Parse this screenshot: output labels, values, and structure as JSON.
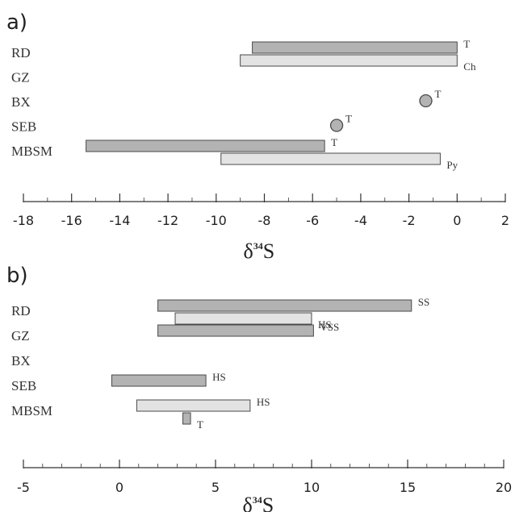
{
  "chart_data": [
    {
      "type": "bar",
      "panel_label": "a)",
      "xlabel": "δ34S",
      "xlabel_main": "δ",
      "xlabel_sup": "34",
      "xlabel_tail": "S",
      "xlim": [
        -18,
        2
      ],
      "xticks": [
        -18,
        -16,
        -14,
        -12,
        -10,
        -8,
        -6,
        -4,
        -2,
        0,
        2
      ],
      "xtick_labels": [
        "-18",
        "-16",
        "-14",
        "-12",
        "-10",
        "-8",
        "-6",
        "-4",
        "-2",
        "0",
        "2"
      ],
      "minor_step": 1,
      "categories": [
        "RD",
        "GZ",
        "BX",
        "SEB",
        "MBSM"
      ],
      "ranges": [
        {
          "category": "RD",
          "label": "T",
          "min": -8.5,
          "max": 0.0,
          "shade": "dark",
          "slot": 0
        },
        {
          "category": "RD",
          "label": "Ch",
          "min": -9.0,
          "max": 0.0,
          "shade": "light",
          "slot": 1
        },
        {
          "category": "MBSM",
          "label": "T",
          "min": -15.4,
          "max": -5.5,
          "shade": "dark",
          "slot": 0
        },
        {
          "category": "MBSM",
          "label": "Py",
          "min": -9.8,
          "max": -0.7,
          "shade": "light",
          "slot": 1
        }
      ],
      "points": [
        {
          "category": "BX",
          "label": "T",
          "value": -1.3,
          "shade": "dark"
        },
        {
          "category": "SEB",
          "label": "T",
          "value": -5.0,
          "shade": "dark"
        }
      ]
    },
    {
      "type": "bar",
      "panel_label": "b)",
      "xlabel": "δ34S",
      "xlabel_main": "δ",
      "xlabel_sup": "34",
      "xlabel_tail": "S",
      "xlim": [
        -5,
        20
      ],
      "xticks": [
        -5,
        0,
        5,
        10,
        15,
        20
      ],
      "xtick_labels": [
        "-5",
        "0",
        "5",
        "10",
        "15",
        "20"
      ],
      "minor_step": 1,
      "categories": [
        "RD",
        "GZ",
        "BX",
        "SEB",
        "MBSM"
      ],
      "ranges": [
        {
          "category": "RD",
          "label": "SS",
          "min": 2.0,
          "max": 15.2,
          "shade": "dark",
          "slot": 0
        },
        {
          "category": "RD",
          "label": "HS",
          "min": 2.9,
          "max": 10.0,
          "shade": "light",
          "slot": 1
        },
        {
          "category": "GZ",
          "label": "VSS",
          "min": 2.0,
          "max": 10.1,
          "shade": "dark",
          "slot": 0
        },
        {
          "category": "SEB",
          "label": "HS",
          "min": -0.4,
          "max": 4.5,
          "shade": "dark",
          "slot": 0
        },
        {
          "category": "MBSM",
          "label": "HS",
          "min": 0.9,
          "max": 6.8,
          "shade": "light",
          "slot": 0
        },
        {
          "category": "MBSM",
          "label": "T",
          "min": 3.3,
          "max": 3.7,
          "shade": "dark",
          "slot": 1
        }
      ],
      "points": []
    }
  ],
  "colors": {
    "dark_fill": "#b3b3b3",
    "light_fill": "#e3e3e3",
    "stroke": "#4a4a4a",
    "axis": "#333333",
    "text": "#333333"
  }
}
